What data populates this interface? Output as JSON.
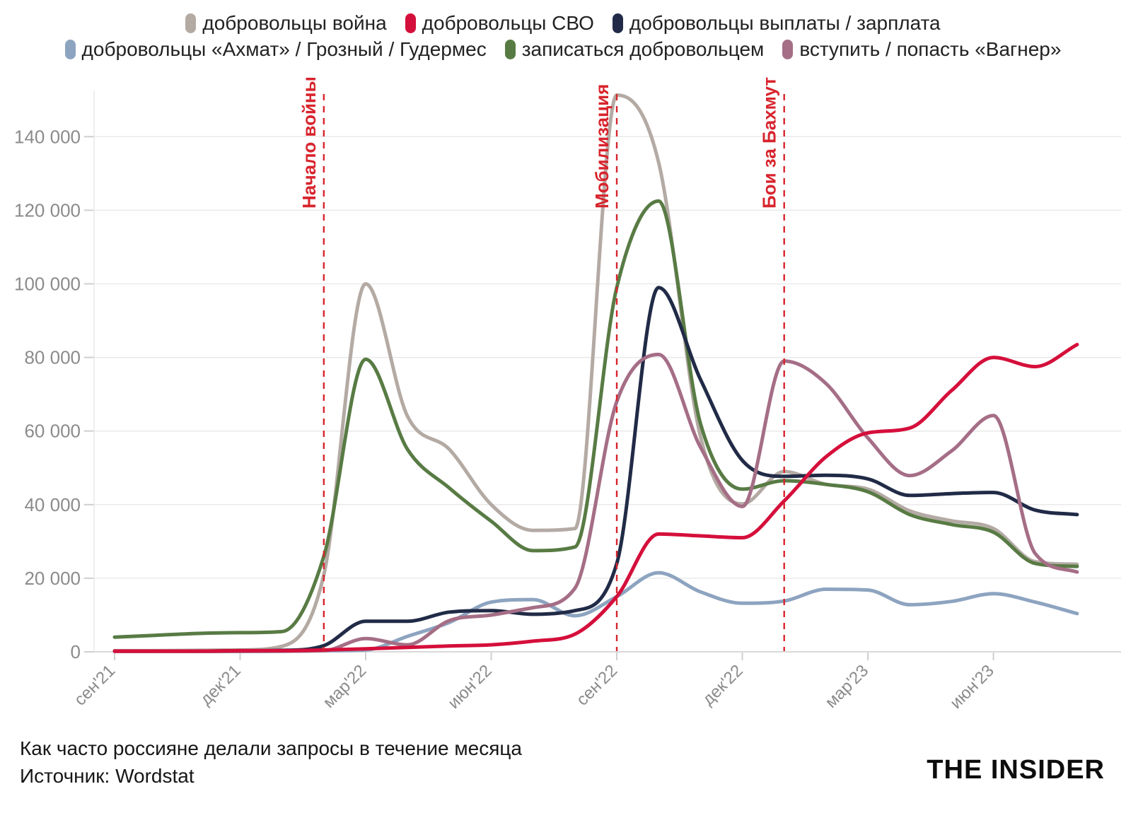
{
  "caption": {
    "title": "Как часто россияне делали запросы в течение месяца",
    "source": "Источник: Wordstat"
  },
  "logo": "THE INSIDER",
  "colors": {
    "grid": "#e9e9e9",
    "axis_line": "#d9d9d9",
    "tick": "#cfcfcf",
    "axis_text": "#8b8b8b",
    "annotation": "#d8242d",
    "legend_text": "#222222"
  },
  "chart_data": {
    "type": "line",
    "title": "Как часто россияне делали запросы в течение месяца",
    "xlabel": "",
    "ylabel": "",
    "ylim": [
      0,
      152000
    ],
    "yticks": [
      0,
      20000,
      40000,
      60000,
      80000,
      100000,
      120000,
      140000
    ],
    "grid": "horizontal",
    "legend_position": "top",
    "x": [
      "сен'21",
      "окт'21",
      "ноя'21",
      "дек'21",
      "янв'22",
      "фев'22",
      "мар'22",
      "апр'22",
      "май'22",
      "июн'22",
      "июл'22",
      "авг'22",
      "сен'22",
      "окт'22",
      "ноя'22",
      "дек'22",
      "янв'23",
      "фев'23",
      "мар'23",
      "апр'23",
      "май'23",
      "июн'23",
      "июл'23",
      "авг'23"
    ],
    "x_tick_indices": [
      0,
      3,
      6,
      9,
      12,
      15,
      18,
      21
    ],
    "x_tick_labels": [
      "сен'21",
      "дек'21",
      "мар'22",
      "июн'22",
      "сен'22",
      "дек'22",
      "мар'23",
      "июн'23"
    ],
    "legend_rows": [
      [
        0,
        1,
        2
      ],
      [
        3,
        4,
        5
      ]
    ],
    "draw_order": [
      3,
      0,
      4,
      2,
      5,
      1
    ],
    "series": [
      {
        "name": "добровольцы война",
        "color": "#b4aaa4",
        "values": [
          300,
          300,
          400,
          500,
          1500,
          21000,
          100000,
          64000,
          55000,
          40000,
          33000,
          33500,
          151300,
          133000,
          58500,
          40200,
          49000,
          45500,
          44200,
          38300,
          35600,
          33500,
          24500,
          23800
        ]
      },
      {
        "name": "добровольцы СВО",
        "color": "#d50f3b",
        "values": [
          200,
          200,
          200,
          300,
          300,
          500,
          800,
          1200,
          1600,
          1900,
          2900,
          4800,
          15000,
          32000,
          31500,
          31000,
          41000,
          53000,
          59500,
          60800,
          71000,
          80000,
          77500,
          83500
        ]
      },
      {
        "name": "добровольцы выплаты / зарплата",
        "color": "#212b47",
        "values": [
          200,
          200,
          200,
          300,
          400,
          1700,
          8300,
          8300,
          10800,
          11200,
          10200,
          11200,
          24000,
          99000,
          74000,
          52000,
          47700,
          48000,
          47000,
          42500,
          43000,
          43300,
          38500,
          37300
        ]
      },
      {
        "name": "добровольцы «Ахмат» / Грозный / Гудермес",
        "color": "#8da4c0",
        "values": [
          100,
          100,
          100,
          100,
          150,
          300,
          500,
          4200,
          8000,
          13500,
          14200,
          9800,
          15000,
          21500,
          16300,
          13200,
          13800,
          17000,
          16800,
          12800,
          13700,
          15800,
          13500,
          10400
        ]
      },
      {
        "name": "записаться добровольцем",
        "color": "#587b44",
        "values": [
          4000,
          4500,
          5000,
          5200,
          5500,
          26000,
          79500,
          55000,
          44500,
          35500,
          27500,
          28500,
          99000,
          122500,
          62000,
          44200,
          46500,
          45500,
          43500,
          37300,
          34600,
          32500,
          24000,
          23200
        ]
      },
      {
        "name": "вступить / попасть «Вагнер»",
        "color": "#a56e86",
        "values": [
          100,
          100,
          100,
          150,
          200,
          300,
          3600,
          1900,
          8500,
          10000,
          12000,
          17300,
          68000,
          80800,
          55600,
          39500,
          79000,
          72900,
          58100,
          47900,
          54600,
          64200,
          26700,
          21700
        ]
      }
    ],
    "annotations": [
      {
        "label": "Начало войны",
        "x_index": 5
      },
      {
        "label": "Мобилизация",
        "x_index": 12
      },
      {
        "label": "Бои за Бахмут",
        "x_index": 16
      }
    ]
  }
}
